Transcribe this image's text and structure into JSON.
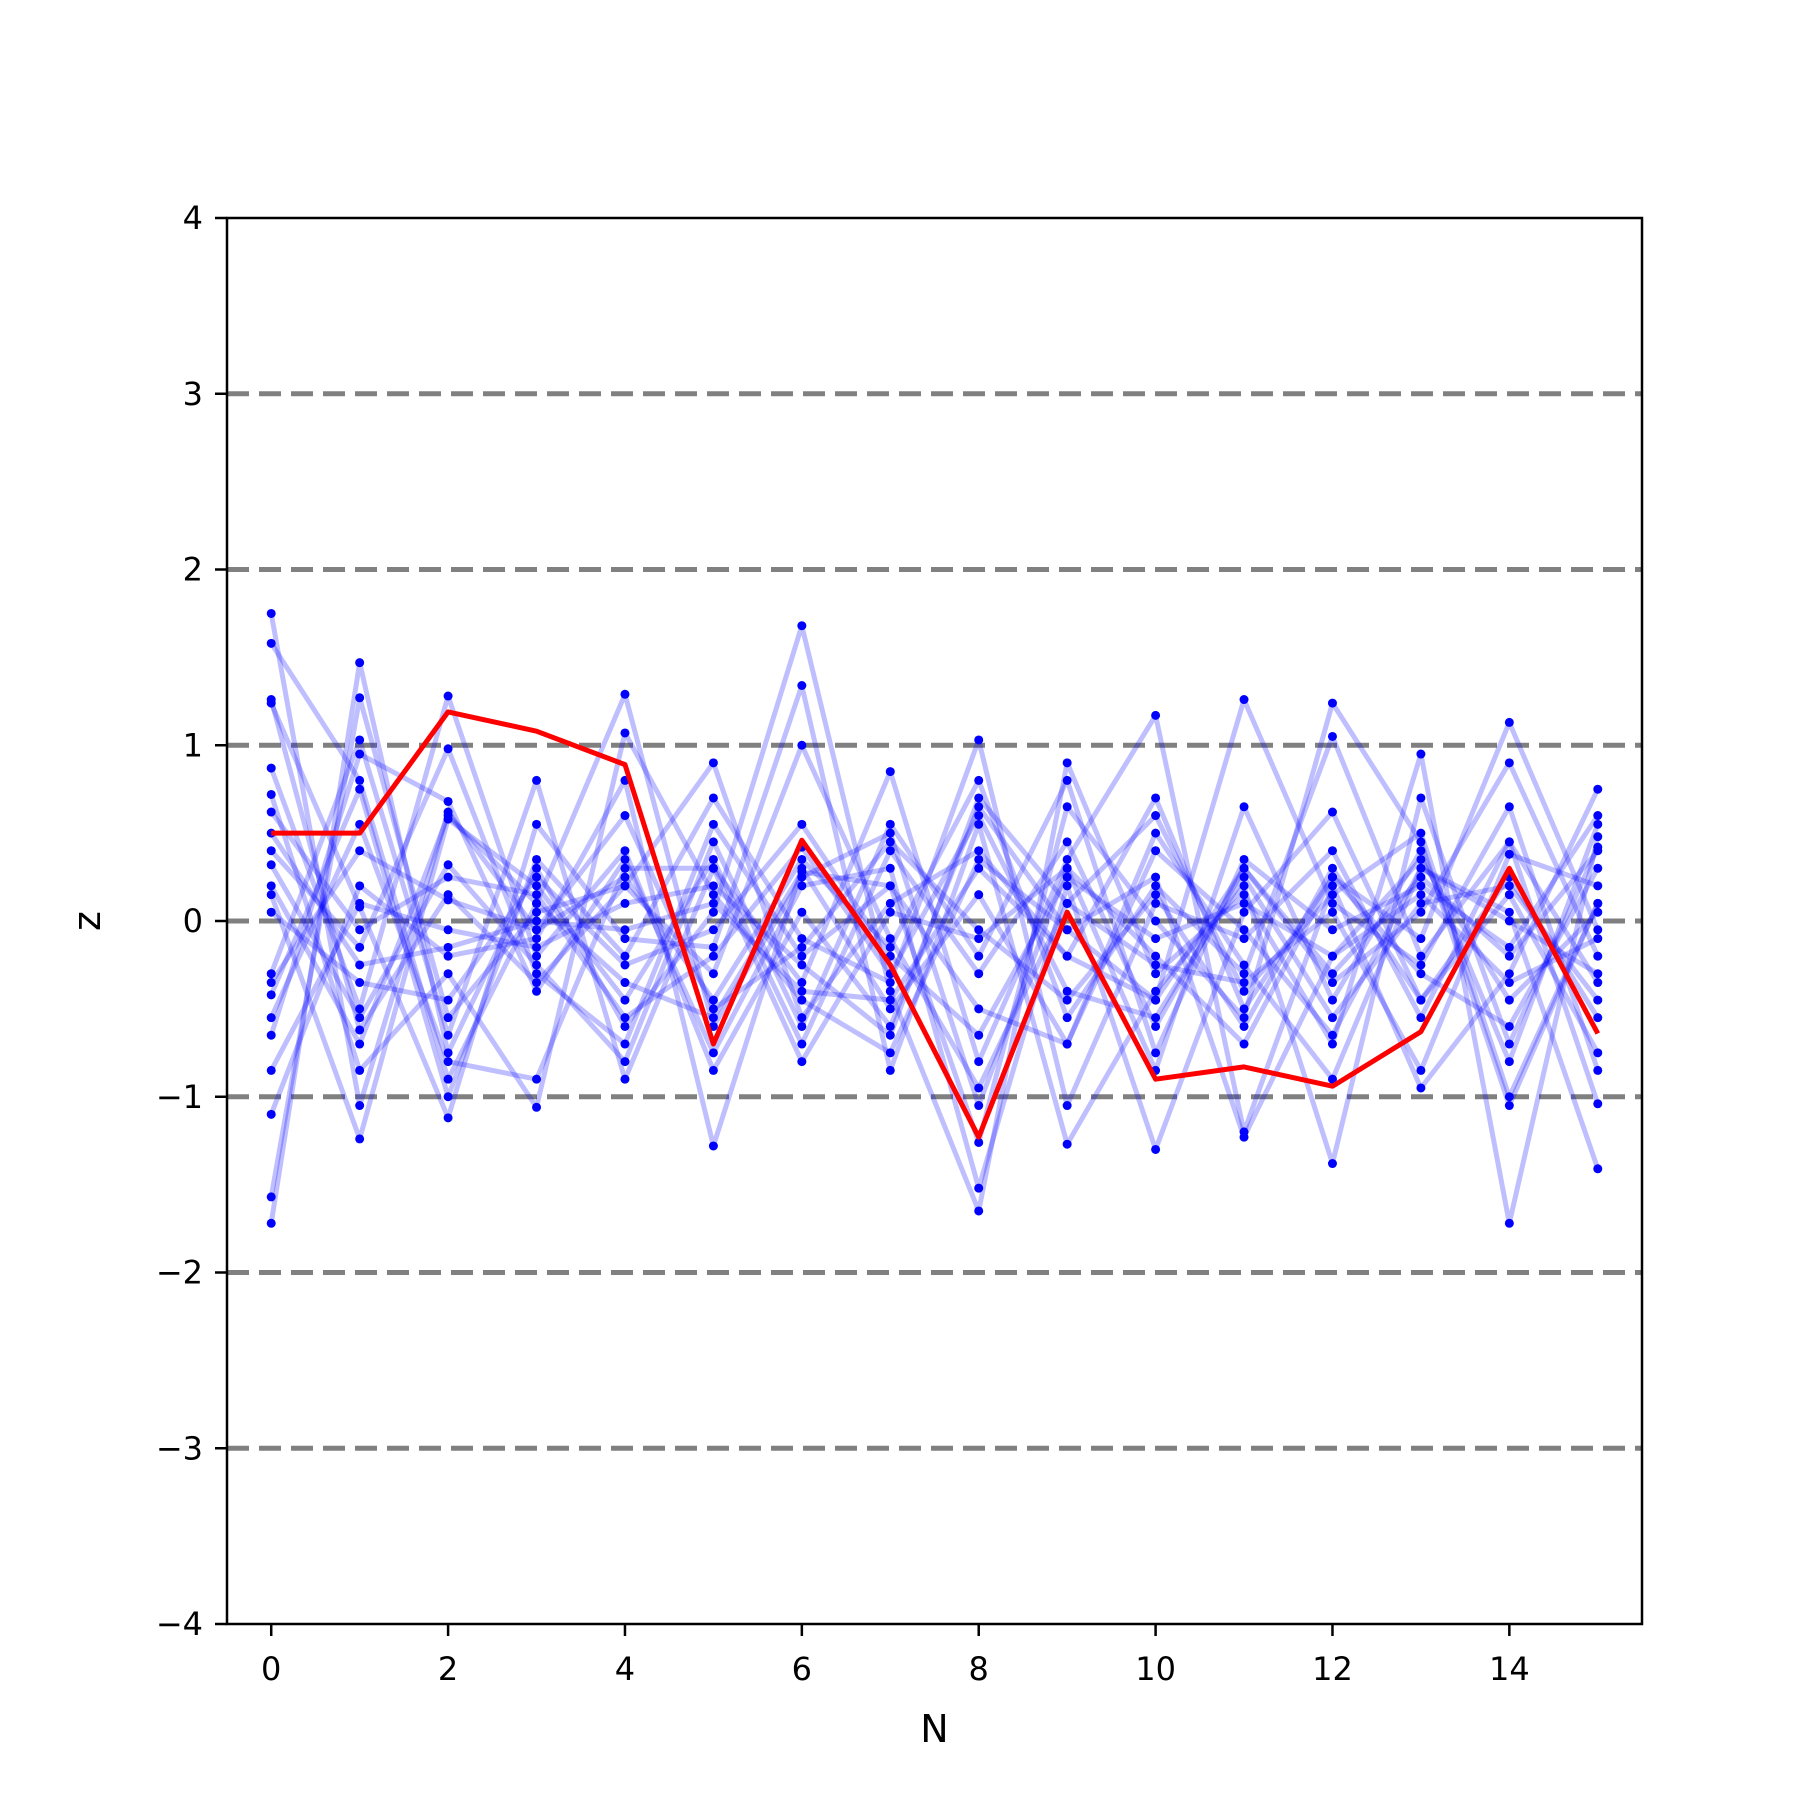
{
  "chart_data": {
    "type": "line",
    "title": "",
    "xlabel": "N",
    "ylabel": "z",
    "xlim": [
      -0.5,
      15.5
    ],
    "ylim": [
      -4,
      4
    ],
    "xticks": [
      0,
      2,
      4,
      6,
      8,
      10,
      12,
      14
    ],
    "yticks": [
      -4,
      -3,
      -2,
      -1,
      0,
      1,
      2,
      3,
      4
    ],
    "xtick_labels": [
      "0",
      "2",
      "4",
      "6",
      "8",
      "10",
      "12",
      "14"
    ],
    "ytick_labels": [
      "−4",
      "−3",
      "−2",
      "−1",
      "0",
      "1",
      "2",
      "3",
      "4"
    ],
    "reference_lines": [
      -3,
      -2,
      -1,
      0,
      1,
      2,
      3
    ],
    "reference_line_color": "#808080",
    "grid": false,
    "x": [
      0,
      1,
      2,
      3,
      4,
      5,
      6,
      7,
      8,
      9,
      10,
      11,
      12,
      13,
      14,
      15
    ],
    "background_series_color": "#0000ff",
    "background_series": [
      [
        1.75,
        -1.05,
        0.62,
        -0.05,
        0.25,
        -0.45,
        0.35,
        -0.15,
        0.8,
        -0.55,
        0.2,
        -0.3,
        1.05,
        -0.2,
        0.45,
        -0.35
      ],
      [
        1.58,
        0.8,
        -0.9,
        0.1,
        1.29,
        -0.6,
        0.25,
        0.5,
        -1.05,
        0.3,
        -0.85,
        0.65,
        -0.45,
        0.4,
        -0.8,
        0.55
      ],
      [
        1.26,
        -0.62,
        0.15,
        -0.35,
        0.2,
        0.9,
        -0.55,
        0.1,
        0.4,
        -0.2,
        0.7,
        -0.5,
        0.25,
        -0.1,
        1.13,
        -0.05
      ],
      [
        -1.72,
        1.47,
        -0.75,
        0.3,
        -0.6,
        0.05,
        1.68,
        -0.4,
        -1.65,
        0.9,
        -0.3,
        0.15,
        -0.7,
        0.95,
        -1.72,
        0.48
      ],
      [
        0.87,
        -0.5,
        1.28,
        -0.2,
        0.4,
        -0.85,
        0.05,
        -0.6,
        0.65,
        -0.05,
        -0.45,
        1.26,
        0.1,
        -0.25,
        0.65,
        -0.85
      ],
      [
        -0.3,
        1.03,
        -0.65,
        0.8,
        -0.9,
        0.3,
        -0.35,
        0.85,
        -0.8,
        0.35,
        1.17,
        -1.2,
        0.2,
        -0.95,
        -0.3,
        0.75
      ],
      [
        0.4,
        -0.15,
        0.98,
        -0.3,
        -0.7,
        0.55,
        -0.2,
        0.2,
        -1.26,
        0.65,
        0.0,
        -0.55,
        1.24,
        0.45,
        -1.05,
        0.1
      ],
      [
        -1.1,
        0.2,
        -0.2,
        -0.1,
        0.8,
        -1.28,
        0.3,
        -0.5,
        0.15,
        -0.7,
        0.5,
        -0.25,
        -0.9,
        0.3,
        0.05,
        -1.41
      ],
      [
        0.15,
        -1.24,
        0.58,
        0.2,
        -0.45,
        0.35,
        -0.7,
        0.4,
        -0.3,
        0.45,
        -0.6,
        0.3,
        -0.35,
        0.05,
        0.9,
        -0.2
      ],
      [
        1.24,
        0.08,
        -1.12,
        0.55,
        -0.1,
        -0.15,
        1.34,
        -0.85,
        0.55,
        -1.27,
        -0.4,
        0.2,
        -1.38,
        0.7,
        -0.7,
        0.42
      ],
      [
        -0.65,
        0.95,
        0.68,
        -0.4,
        0.35,
        -0.75,
        0.2,
        0.3,
        -1.52,
        0.2,
        -1.3,
        0.05,
        0.62,
        -0.45,
        0.25,
        -0.55
      ],
      [
        0.72,
        -0.85,
        -0.3,
        -1.06,
        1.07,
        0.15,
        -0.45,
        -0.75,
        0.35,
        -0.05,
        0.25,
        -1.23,
        -0.2,
        0.35,
        -0.45,
        0.05
      ],
      [
        -0.42,
        0.75,
        -1.0,
        0.35,
        -0.2,
        0.7,
        -0.1,
        -0.35,
        1.03,
        -1.05,
        0.1,
        -0.1,
        0.4,
        -0.55,
        0.45,
        -1.04
      ],
      [
        0.32,
        -0.55,
        0.32,
        -0.25,
        -0.8,
        0.45,
        -0.6,
        0.55,
        -0.2,
        0.8,
        -0.75,
        0.35,
        -0.05,
        0.2,
        -0.15,
        0.6
      ],
      [
        -1.57,
        1.27,
        -0.55,
        0.05,
        0.2,
        -0.3,
        1.0,
        -0.1,
        -0.95,
        0.1,
        0.6,
        -0.4,
        0.15,
        0.5,
        -1.0,
        0.1
      ],
      [
        0.62,
        -0.05,
        0.25,
        0.15,
        -0.55,
        -0.2,
        0.42,
        -0.3,
        0.6,
        -0.4,
        -0.55,
        0.25,
        -0.55,
        0.1,
        0.2,
        -0.45
      ],
      [
        -0.55,
        0.55,
        -0.8,
        -0.9,
        0.3,
        0.3,
        -0.8,
        0.05,
        -0.1,
        0.3,
        -0.2,
        -0.7,
        0.25,
        -0.3,
        -0.6,
        0.3
      ],
      [
        0.2,
        -0.7,
        0.6,
        0.1,
        -0.35,
        -0.55,
        0.28,
        0.2,
        -0.5,
        -0.7,
        0.4,
        -0.05,
        -0.65,
        0.3,
        0.0,
        -0.3
      ],
      [
        -0.85,
        0.1,
        -0.05,
        -0.15,
        0.1,
        0.2,
        -0.25,
        -0.65,
        0.7,
        0.1,
        -0.25,
        -0.35,
        0.05,
        -0.85,
        0.38,
        0.2
      ],
      [
        0.05,
        -0.35,
        -0.45,
        0.25,
        -0.25,
        -0.05,
        0.55,
        -0.2,
        -0.65,
        0.25,
        -0.1,
        0.1,
        -0.2,
        0.15,
        -0.35,
        -0.1
      ],
      [
        -0.35,
        0.4,
        0.12,
        -0.05,
        0.6,
        -0.5,
        -0.15,
        0.45,
        -0.05,
        -0.45,
        0.15,
        -0.6,
        0.3,
        -0.45,
        0.15,
        -0.75
      ],
      [
        0.5,
        -0.25,
        -0.15,
        0.0,
        -0.05,
        0.1,
        -0.4,
        -0.45,
        0.3,
        -0.2,
        -0.45,
        0.3,
        -0.3,
        0.25,
        -0.2,
        0.4
      ]
    ],
    "series": [
      {
        "values": [
          0.5,
          0.5,
          1.19,
          1.08,
          0.89,
          -0.7,
          0.46,
          -0.25,
          -1.23,
          0.05,
          -0.9,
          -0.83,
          -0.94,
          -0.63,
          0.3,
          -0.64
        ],
        "color": "#ff0000"
      }
    ]
  }
}
